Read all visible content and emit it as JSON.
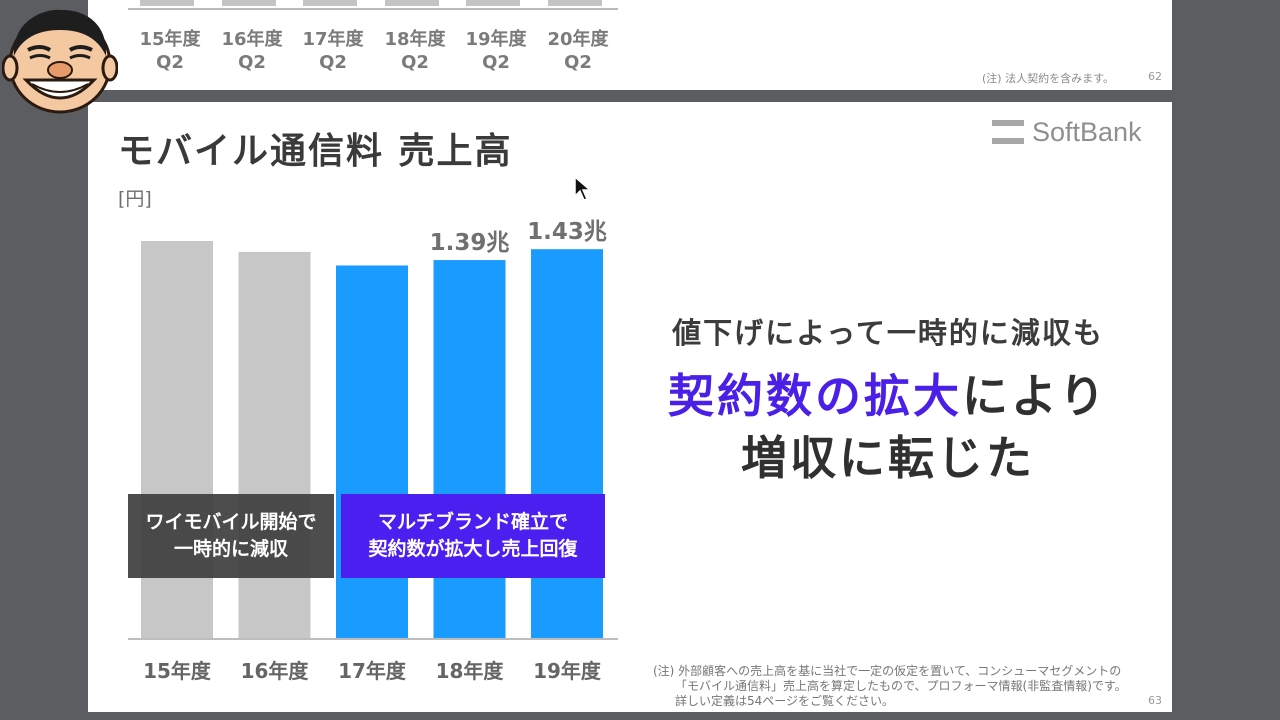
{
  "previous_slide": {
    "categories": [
      "15年度",
      "16年度",
      "17年度",
      "18年度",
      "19年度",
      "20年度"
    ],
    "sub_label": "Q2",
    "footnote": "(注) 法人契約を含みます。",
    "page_number": "62"
  },
  "slide": {
    "title": "モバイル通信料 売上高",
    "logo_text": "SoftBank",
    "unit_label": "[円]",
    "callouts": [
      {
        "line1": "ワイモバイル開始で",
        "line2": "一時的に減収"
      },
      {
        "line1": "マルチブランド確立で",
        "line2": "契約数が拡大し売上回復"
      }
    ],
    "message": {
      "line1": "値下げによって一時的に減収も",
      "line2_highlight": "契約数の拡大",
      "line2_rest": "により",
      "line3": "増収に転じた"
    },
    "note": {
      "line1": "(注) 外部顧客への売上高を基に当社で一定の仮定を置いて、コンシューマセグメントの",
      "line2": "「モバイル通信料」売上高を算定したもので、プロフォーマ情報(非監査情報)です。",
      "line3": "詳しい定義は54ページをご覧ください。"
    },
    "page_number": "63"
  },
  "colors": {
    "grey_bar": "#c7c7c7",
    "blue_bar": "#1a9bff",
    "highlight": "#4a1fe8",
    "callout_purple": "#4b1ff0",
    "callout_dark": "#404040"
  },
  "chart_data": {
    "type": "bar",
    "categories": [
      "15年度",
      "16年度",
      "17年度",
      "18年度",
      "19年度"
    ],
    "values": [
      1.46,
      1.42,
      1.37,
      1.39,
      1.43
    ],
    "value_labels": [
      "",
      "",
      "",
      "1.39兆",
      "1.43兆"
    ],
    "bar_colors": [
      "#c7c7c7",
      "#c7c7c7",
      "#1a9bff",
      "#1a9bff",
      "#1a9bff"
    ],
    "ylabel": "[円]",
    "ylim": [
      0.0,
      1.53
    ]
  }
}
